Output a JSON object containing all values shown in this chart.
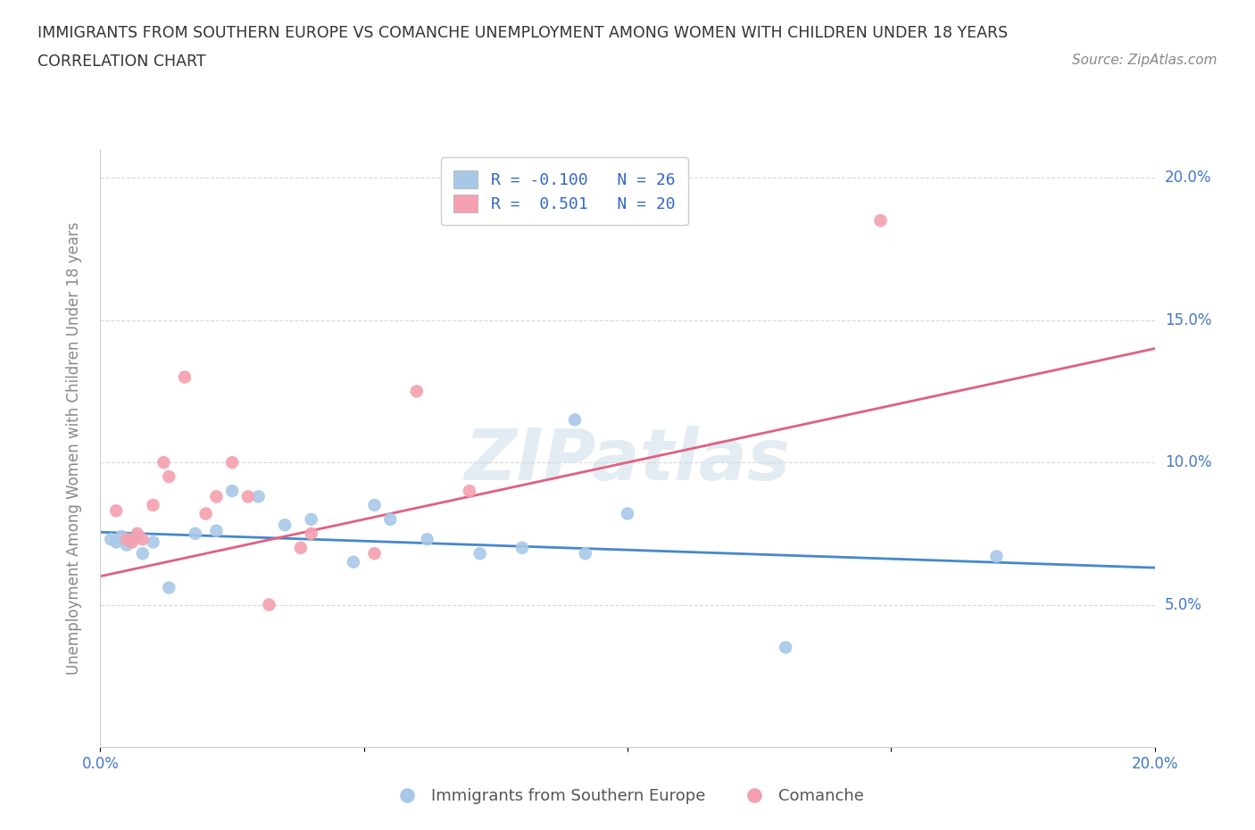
{
  "title_line1": "IMMIGRANTS FROM SOUTHERN EUROPE VS COMANCHE UNEMPLOYMENT AMONG WOMEN WITH CHILDREN UNDER 18 YEARS",
  "title_line2": "CORRELATION CHART",
  "source_text": "Source: ZipAtlas.com",
  "ylabel": "Unemployment Among Women with Children Under 18 years",
  "xlim": [
    0.0,
    0.2
  ],
  "ylim": [
    0.0,
    0.21
  ],
  "ytick_vals": [
    0.05,
    0.1,
    0.15,
    0.2
  ],
  "xtick_vals": [
    0.0,
    0.05,
    0.1,
    0.15,
    0.2
  ],
  "xtick_labels_show": [
    "0.0%",
    "",
    "",
    "",
    "20.0%"
  ],
  "watermark": "ZIPatlas",
  "blue_scatter_x": [
    0.002,
    0.003,
    0.004,
    0.005,
    0.006,
    0.007,
    0.008,
    0.01,
    0.013,
    0.018,
    0.022,
    0.025,
    0.03,
    0.035,
    0.04,
    0.048,
    0.052,
    0.055,
    0.062,
    0.072,
    0.08,
    0.09,
    0.092,
    0.1,
    0.13,
    0.17
  ],
  "blue_scatter_y": [
    0.073,
    0.072,
    0.074,
    0.071,
    0.073,
    0.074,
    0.068,
    0.072,
    0.056,
    0.075,
    0.076,
    0.09,
    0.088,
    0.078,
    0.08,
    0.065,
    0.085,
    0.08,
    0.073,
    0.068,
    0.07,
    0.115,
    0.068,
    0.082,
    0.035,
    0.067
  ],
  "pink_scatter_x": [
    0.003,
    0.005,
    0.006,
    0.007,
    0.008,
    0.01,
    0.012,
    0.013,
    0.016,
    0.02,
    0.022,
    0.025,
    0.028,
    0.032,
    0.038,
    0.04,
    0.052,
    0.06,
    0.07,
    0.148
  ],
  "pink_scatter_y": [
    0.083,
    0.073,
    0.072,
    0.075,
    0.073,
    0.085,
    0.1,
    0.095,
    0.13,
    0.082,
    0.088,
    0.1,
    0.088,
    0.05,
    0.07,
    0.075,
    0.068,
    0.125,
    0.09,
    0.185
  ],
  "blue_line_x": [
    0.0,
    0.2
  ],
  "blue_line_y": [
    0.0755,
    0.063
  ],
  "pink_line_x": [
    0.0,
    0.2
  ],
  "pink_line_y": [
    0.06,
    0.14
  ],
  "blue_color": "#a8c8e8",
  "pink_color": "#f4a0b0",
  "blue_line_color": "#4488cc",
  "pink_line_color": "#e06080",
  "tick_label_color": "#4477cc",
  "background_color": "#ffffff",
  "grid_color": "#d8d8d8",
  "title_color": "#333333",
  "source_color": "#888888",
  "ylabel_color": "#888888",
  "watermark_color": "#ccdde8"
}
